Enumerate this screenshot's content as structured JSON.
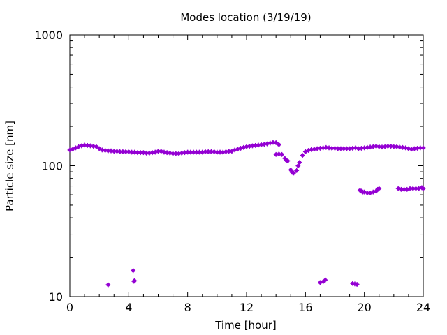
{
  "chart_data": {
    "type": "scatter",
    "title": "Modes location (3/19/19)",
    "xlabel": "Time [hour]",
    "ylabel": "Particle size [nm]",
    "xlim": [
      0,
      24
    ],
    "ylim": [
      10,
      1000
    ],
    "yscale": "log",
    "x_ticks": [
      "0",
      "4",
      "8",
      "12",
      "16",
      "20",
      "24"
    ],
    "y_ticks": [
      "10",
      "100",
      "1000"
    ],
    "grid": false,
    "marker_color": "#9400d3",
    "series": [
      {
        "points": [
          [
            0.0,
            132
          ],
          [
            0.2,
            134
          ],
          [
            0.4,
            137
          ],
          [
            0.6,
            140
          ],
          [
            0.8,
            142
          ],
          [
            1.0,
            144
          ],
          [
            1.2,
            143
          ],
          [
            1.4,
            142
          ],
          [
            1.6,
            141
          ],
          [
            1.8,
            140
          ],
          [
            2.0,
            135
          ],
          [
            2.2,
            132
          ],
          [
            2.4,
            131
          ],
          [
            2.6,
            130
          ],
          [
            2.8,
            130
          ],
          [
            3.0,
            129
          ],
          [
            3.2,
            129
          ],
          [
            3.4,
            128
          ],
          [
            3.6,
            128
          ],
          [
            3.8,
            128
          ],
          [
            4.0,
            128
          ],
          [
            4.2,
            127
          ],
          [
            4.4,
            127
          ],
          [
            4.6,
            126
          ],
          [
            4.8,
            126
          ],
          [
            5.0,
            126
          ],
          [
            5.2,
            125
          ],
          [
            5.4,
            125
          ],
          [
            5.6,
            126
          ],
          [
            5.8,
            127
          ],
          [
            6.0,
            129
          ],
          [
            6.2,
            129
          ],
          [
            6.4,
            127
          ],
          [
            6.6,
            126
          ],
          [
            6.8,
            125
          ],
          [
            7.0,
            124
          ],
          [
            7.2,
            124
          ],
          [
            7.4,
            124
          ],
          [
            7.6,
            125
          ],
          [
            7.8,
            126
          ],
          [
            8.0,
            127
          ],
          [
            8.2,
            127
          ],
          [
            8.4,
            127
          ],
          [
            8.6,
            127
          ],
          [
            8.8,
            127
          ],
          [
            9.0,
            127
          ],
          [
            9.2,
            128
          ],
          [
            9.4,
            128
          ],
          [
            9.6,
            128
          ],
          [
            9.8,
            128
          ],
          [
            10.0,
            127
          ],
          [
            10.2,
            127
          ],
          [
            10.4,
            127
          ],
          [
            10.6,
            128
          ],
          [
            10.8,
            129
          ],
          [
            11.0,
            129
          ],
          [
            11.2,
            132
          ],
          [
            11.4,
            134
          ],
          [
            11.6,
            136
          ],
          [
            11.8,
            138
          ],
          [
            12.0,
            140
          ],
          [
            12.2,
            141
          ],
          [
            12.4,
            142
          ],
          [
            12.6,
            143
          ],
          [
            12.8,
            144
          ],
          [
            13.0,
            145
          ],
          [
            13.2,
            146
          ],
          [
            13.4,
            147
          ],
          [
            13.6,
            149
          ],
          [
            13.8,
            151
          ],
          [
            14.0,
            150
          ],
          [
            14.2,
            145
          ],
          [
            14.4,
            122
          ],
          [
            14.6,
            114
          ],
          [
            14.7,
            110
          ],
          [
            14.8,
            109
          ],
          [
            15.0,
            93
          ],
          [
            15.1,
            89
          ],
          [
            15.2,
            88
          ],
          [
            15.4,
            92
          ],
          [
            15.5,
            100
          ],
          [
            15.6,
            106
          ],
          [
            15.8,
            120
          ],
          [
            16.0,
            128
          ],
          [
            16.2,
            131
          ],
          [
            16.4,
            133
          ],
          [
            16.6,
            134
          ],
          [
            16.8,
            135
          ],
          [
            17.0,
            136
          ],
          [
            17.2,
            137
          ],
          [
            17.4,
            138
          ],
          [
            17.6,
            137
          ],
          [
            17.8,
            136
          ],
          [
            18.0,
            136
          ],
          [
            18.2,
            135
          ],
          [
            18.4,
            135
          ],
          [
            18.6,
            135
          ],
          [
            18.8,
            135
          ],
          [
            19.0,
            135
          ],
          [
            19.2,
            136
          ],
          [
            19.4,
            137
          ],
          [
            19.6,
            135
          ],
          [
            19.8,
            136
          ],
          [
            20.0,
            137
          ],
          [
            20.2,
            138
          ],
          [
            20.4,
            139
          ],
          [
            20.6,
            140
          ],
          [
            20.8,
            141
          ],
          [
            21.0,
            140
          ],
          [
            21.2,
            139
          ],
          [
            21.4,
            140
          ],
          [
            21.6,
            141
          ],
          [
            21.8,
            141
          ],
          [
            22.0,
            140
          ],
          [
            22.2,
            140
          ],
          [
            22.4,
            139
          ],
          [
            22.6,
            138
          ],
          [
            22.8,
            137
          ],
          [
            23.0,
            135
          ],
          [
            23.2,
            134
          ],
          [
            23.4,
            135
          ],
          [
            23.6,
            136
          ],
          [
            23.8,
            137
          ],
          [
            24.0,
            137
          ],
          [
            14.0,
            122
          ],
          [
            14.2,
            123
          ],
          [
            19.7,
            65
          ],
          [
            19.8,
            64
          ],
          [
            19.9,
            63
          ],
          [
            20.0,
            63
          ],
          [
            20.2,
            62
          ],
          [
            20.4,
            62
          ],
          [
            20.6,
            63
          ],
          [
            20.8,
            64
          ],
          [
            20.9,
            66
          ],
          [
            21.0,
            67
          ],
          [
            22.3,
            67
          ],
          [
            22.5,
            66
          ],
          [
            22.7,
            66
          ],
          [
            22.9,
            66
          ],
          [
            23.1,
            67
          ],
          [
            23.3,
            67
          ],
          [
            23.5,
            67
          ],
          [
            23.7,
            67
          ],
          [
            23.9,
            68
          ],
          [
            24.0,
            67
          ],
          [
            2.6,
            12.3
          ],
          [
            4.3,
            15.8
          ],
          [
            4.35,
            13.1
          ],
          [
            4.4,
            13.2
          ],
          [
            17.0,
            12.8
          ],
          [
            17.2,
            13.0
          ],
          [
            17.35,
            13.4
          ],
          [
            19.2,
            12.6
          ],
          [
            19.35,
            12.5
          ],
          [
            19.5,
            12.4
          ]
        ]
      }
    ]
  }
}
